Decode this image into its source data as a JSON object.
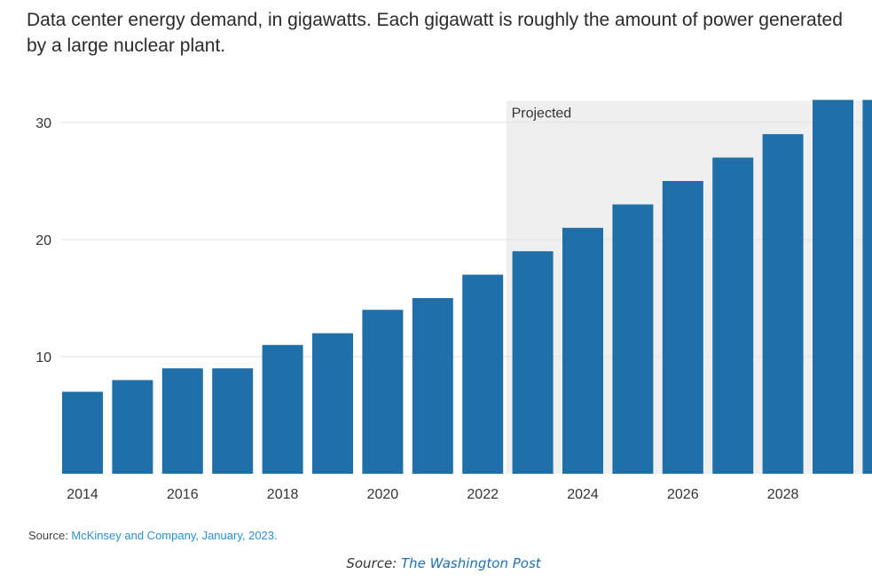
{
  "title": "Data center energy demand, in gigawatts. Each gigawatt is roughly the amount of power generated by a large nuclear plant.",
  "projected_label": "Projected",
  "source": {
    "prefix": "Source: ",
    "name": "McKinsey and Company, January, 2023."
  },
  "credit": {
    "prefix": "Source: ",
    "name": "The Washington Post"
  },
  "colors": {
    "bar": "#1f6fa8",
    "projected_band": "#efefef",
    "grid": "#e2e2e2"
  },
  "chart_data": {
    "type": "bar",
    "title": "Data center energy demand, in gigawatts. Each gigawatt is roughly the amount of power generated by a large nuclear plant.",
    "xlabel": "",
    "ylabel": "",
    "categories": [
      "2014",
      "2015",
      "2016",
      "2017",
      "2018",
      "2019",
      "2020",
      "2021",
      "2022",
      "2023",
      "2024",
      "2025",
      "2026",
      "2027",
      "2028",
      "2029",
      "2030"
    ],
    "values": [
      7,
      8,
      9,
      9,
      11,
      12,
      14,
      15,
      17,
      19,
      21,
      23,
      25,
      27,
      29,
      32,
      35
    ],
    "x_tick_labels": [
      "2014",
      "2016",
      "2018",
      "2020",
      "2022",
      "2024",
      "2026",
      "2028"
    ],
    "y_ticks": [
      10,
      20,
      30
    ],
    "ylim": [
      0,
      32
    ],
    "grid": true,
    "projected_from": "2023",
    "legend": "none"
  }
}
